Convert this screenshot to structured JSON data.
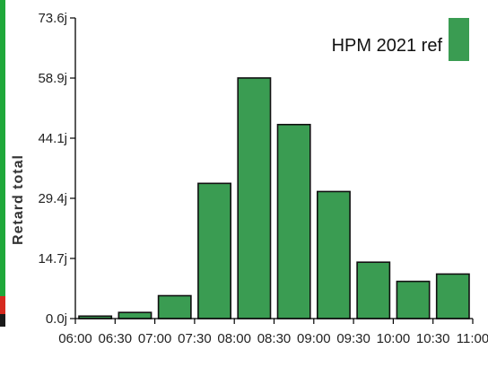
{
  "chart_data": {
    "type": "bar",
    "title": "",
    "xlabel": "",
    "ylabel": "Retard total",
    "x_ticks": [
      "06:00",
      "06:30",
      "07:00",
      "07:30",
      "08:00",
      "08:30",
      "09:00",
      "09:30",
      "10:00",
      "10:30",
      "11:00"
    ],
    "y_ticks": [
      "0.0j",
      "14.7j",
      "29.4j",
      "44.1j",
      "58.9j",
      "73.6j"
    ],
    "ylim": [
      0,
      73.6
    ],
    "legend_position": "top-right",
    "series": [
      {
        "name": "HPM 2021 ref",
        "color": "#3a9c52",
        "bins": [
          {
            "start": "06:00",
            "end": "06:30",
            "value": 0.6
          },
          {
            "start": "06:30",
            "end": "07:00",
            "value": 1.5
          },
          {
            "start": "07:00",
            "end": "07:30",
            "value": 5.6
          },
          {
            "start": "07:30",
            "end": "08:00",
            "value": 33.1
          },
          {
            "start": "08:00",
            "end": "08:30",
            "value": 58.9
          },
          {
            "start": "08:30",
            "end": "09:00",
            "value": 47.5
          },
          {
            "start": "09:00",
            "end": "09:30",
            "value": 31.1
          },
          {
            "start": "09:30",
            "end": "10:00",
            "value": 13.8
          },
          {
            "start": "10:00",
            "end": "10:30",
            "value": 9.1
          },
          {
            "start": "10:30",
            "end": "11:00",
            "value": 10.9
          }
        ]
      }
    ]
  }
}
